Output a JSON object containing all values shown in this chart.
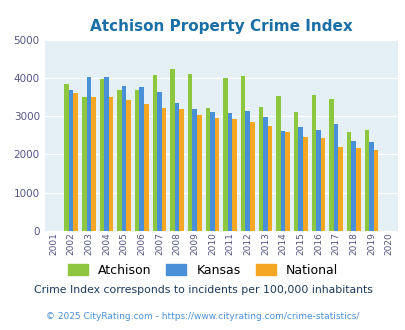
{
  "title": "Atchison Property Crime Index",
  "years": [
    2001,
    2002,
    2003,
    2004,
    2005,
    2006,
    2007,
    2008,
    2009,
    2010,
    2011,
    2012,
    2013,
    2014,
    2015,
    2016,
    2017,
    2018,
    2019,
    2020
  ],
  "atchison": [
    0,
    3830,
    3490,
    3980,
    3680,
    3690,
    4080,
    4230,
    4100,
    3210,
    3990,
    4060,
    3240,
    3530,
    3100,
    3540,
    3460,
    2580,
    2640,
    0
  ],
  "kansas": [
    0,
    3680,
    4010,
    4010,
    3780,
    3760,
    3640,
    3340,
    3190,
    3100,
    3080,
    3130,
    2970,
    2620,
    2720,
    2640,
    2790,
    2340,
    2320,
    0
  ],
  "national": [
    0,
    3600,
    3500,
    3490,
    3420,
    3320,
    3210,
    3180,
    3020,
    2940,
    2930,
    2860,
    2740,
    2580,
    2460,
    2440,
    2200,
    2170,
    2120,
    0
  ],
  "atchison_color": "#8dc63f",
  "kansas_color": "#4a90d9",
  "national_color": "#f5a623",
  "bg_color": "#e4f0f6",
  "ylim": [
    0,
    5000
  ],
  "yticks": [
    0,
    1000,
    2000,
    3000,
    4000,
    5000
  ],
  "subtitle": "Crime Index corresponds to incidents per 100,000 inhabitants",
  "footer": "© 2025 CityRating.com - https://www.cityrating.com/crime-statistics/",
  "title_color": "#1a6fa6",
  "subtitle_color": "#1a3a5c",
  "footer_color": "#4a90d9"
}
